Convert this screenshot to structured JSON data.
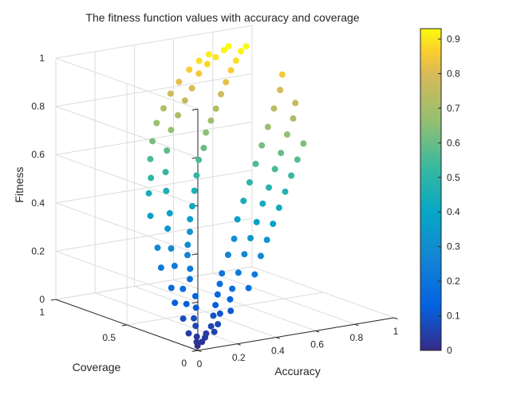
{
  "chart_data": {
    "type": "scatter",
    "dimensions": 3,
    "title": "The fitness function values with accuracy and coverage",
    "xlabel": "Accuracy",
    "ylabel": "Coverage",
    "zlabel": "Fitness",
    "xlim": [
      0,
      1
    ],
    "ylim": [
      0,
      1
    ],
    "zlim": [
      0,
      1
    ],
    "grid": true,
    "colormap": "parula",
    "color_by": "Fitness",
    "x_ticks": [
      "0",
      "0.2",
      "0.4",
      "0.6",
      "0.8",
      "1"
    ],
    "y_ticks": [
      "0",
      "0.5",
      "1"
    ],
    "z_ticks": [
      "0",
      "0.2",
      "0.4",
      "0.6",
      "0.8",
      "1"
    ],
    "colorbar": {
      "clim": [
        0,
        0.93
      ],
      "ticks": [
        "0",
        "0.1",
        "0.2",
        "0.3",
        "0.4",
        "0.5",
        "0.6",
        "0.7",
        "0.8",
        "0.9"
      ]
    },
    "points": [
      [
        0.02,
        0.03,
        0.01
      ],
      [
        0.03,
        0.05,
        0.02
      ],
      [
        0.05,
        0.04,
        0.02
      ],
      [
        0.08,
        0.06,
        0.03
      ],
      [
        0.1,
        0.08,
        0.04
      ],
      [
        0.06,
        0.09,
        0.03
      ],
      [
        0.12,
        0.05,
        0.05
      ],
      [
        0.04,
        0.12,
        0.04
      ],
      [
        0.14,
        0.1,
        0.06
      ],
      [
        0.09,
        0.14,
        0.06
      ],
      [
        0.16,
        0.08,
        0.07
      ],
      [
        0.11,
        0.18,
        0.08
      ],
      [
        0.18,
        0.14,
        0.09
      ],
      [
        0.07,
        0.2,
        0.08
      ],
      [
        0.2,
        0.12,
        0.1
      ],
      [
        0.15,
        0.22,
        0.11
      ],
      [
        0.22,
        0.18,
        0.12
      ],
      [
        0.13,
        0.26,
        0.12
      ],
      [
        0.24,
        0.1,
        0.11
      ],
      [
        0.19,
        0.28,
        0.14
      ],
      [
        0.26,
        0.22,
        0.15
      ],
      [
        0.1,
        0.3,
        0.12
      ],
      [
        0.28,
        0.16,
        0.14
      ],
      [
        0.17,
        0.34,
        0.16
      ],
      [
        0.3,
        0.26,
        0.18
      ],
      [
        0.22,
        0.36,
        0.19
      ],
      [
        0.32,
        0.2,
        0.17
      ],
      [
        0.14,
        0.38,
        0.16
      ],
      [
        0.34,
        0.3,
        0.21
      ],
      [
        0.25,
        0.4,
        0.22
      ],
      [
        0.36,
        0.14,
        0.18
      ],
      [
        0.2,
        0.44,
        0.23
      ],
      [
        0.38,
        0.24,
        0.22
      ],
      [
        0.28,
        0.46,
        0.26
      ],
      [
        0.4,
        0.34,
        0.27
      ],
      [
        0.16,
        0.48,
        0.22
      ],
      [
        0.42,
        0.18,
        0.22
      ],
      [
        0.31,
        0.5,
        0.29
      ],
      [
        0.44,
        0.28,
        0.28
      ],
      [
        0.24,
        0.52,
        0.28
      ],
      [
        0.46,
        0.38,
        0.32
      ],
      [
        0.35,
        0.54,
        0.33
      ],
      [
        0.48,
        0.22,
        0.28
      ],
      [
        0.2,
        0.56,
        0.28
      ],
      [
        0.5,
        0.32,
        0.33
      ],
      [
        0.38,
        0.58,
        0.37
      ],
      [
        0.52,
        0.44,
        0.38
      ],
      [
        0.28,
        0.6,
        0.34
      ],
      [
        0.54,
        0.26,
        0.33
      ],
      [
        0.42,
        0.62,
        0.41
      ],
      [
        0.56,
        0.36,
        0.38
      ],
      [
        0.32,
        0.64,
        0.39
      ],
      [
        0.58,
        0.48,
        0.44
      ],
      [
        0.46,
        0.66,
        0.46
      ],
      [
        0.6,
        0.3,
        0.38
      ],
      [
        0.25,
        0.68,
        0.38
      ],
      [
        0.62,
        0.4,
        0.44
      ],
      [
        0.5,
        0.7,
        0.51
      ],
      [
        0.64,
        0.52,
        0.5
      ],
      [
        0.36,
        0.72,
        0.46
      ],
      [
        0.66,
        0.34,
        0.43
      ],
      [
        0.54,
        0.74,
        0.56
      ],
      [
        0.68,
        0.44,
        0.49
      ],
      [
        0.3,
        0.76,
        0.45
      ],
      [
        0.7,
        0.56,
        0.56
      ],
      [
        0.58,
        0.76,
        0.6
      ],
      [
        0.72,
        0.38,
        0.48
      ],
      [
        0.4,
        0.78,
        0.52
      ],
      [
        0.74,
        0.48,
        0.55
      ],
      [
        0.62,
        0.8,
        0.65
      ],
      [
        0.76,
        0.6,
        0.62
      ],
      [
        0.34,
        0.8,
        0.5
      ],
      [
        0.78,
        0.42,
        0.53
      ],
      [
        0.66,
        0.82,
        0.69
      ],
      [
        0.8,
        0.52,
        0.6
      ],
      [
        0.45,
        0.84,
        0.59
      ],
      [
        0.82,
        0.64,
        0.68
      ],
      [
        0.7,
        0.84,
        0.73
      ],
      [
        0.84,
        0.46,
        0.58
      ],
      [
        0.38,
        0.86,
        0.56
      ],
      [
        0.86,
        0.56,
        0.66
      ],
      [
        0.74,
        0.86,
        0.78
      ],
      [
        0.88,
        0.68,
        0.74
      ],
      [
        0.5,
        0.88,
        0.66
      ],
      [
        0.9,
        0.5,
        0.63
      ],
      [
        0.78,
        0.88,
        0.82
      ],
      [
        0.92,
        0.6,
        0.71
      ],
      [
        0.42,
        0.9,
        0.62
      ],
      [
        0.94,
        0.72,
        0.8
      ],
      [
        0.82,
        0.9,
        0.86
      ],
      [
        0.55,
        0.9,
        0.71
      ],
      [
        0.86,
        0.92,
        0.89
      ],
      [
        0.96,
        0.64,
        0.76
      ],
      [
        0.6,
        0.92,
        0.76
      ],
      [
        0.9,
        0.94,
        0.92
      ],
      [
        0.47,
        0.94,
        0.68
      ],
      [
        0.98,
        0.76,
        0.85
      ],
      [
        0.65,
        0.94,
        0.8
      ],
      [
        0.94,
        0.96,
        0.93
      ],
      [
        0.7,
        0.96,
        0.85
      ],
      [
        0.52,
        0.96,
        0.73
      ],
      [
        0.75,
        0.97,
        0.88
      ],
      [
        0.8,
        0.98,
        0.9
      ],
      [
        0.57,
        0.98,
        0.78
      ],
      [
        0.62,
        0.99,
        0.82
      ],
      [
        0.85,
        0.99,
        0.92
      ],
      [
        0.68,
        1.0,
        0.86
      ],
      [
        0.73,
        1.0,
        0.89
      ],
      [
        0.78,
        1.0,
        0.91
      ],
      [
        0.88,
        1.0,
        0.93
      ]
    ]
  }
}
